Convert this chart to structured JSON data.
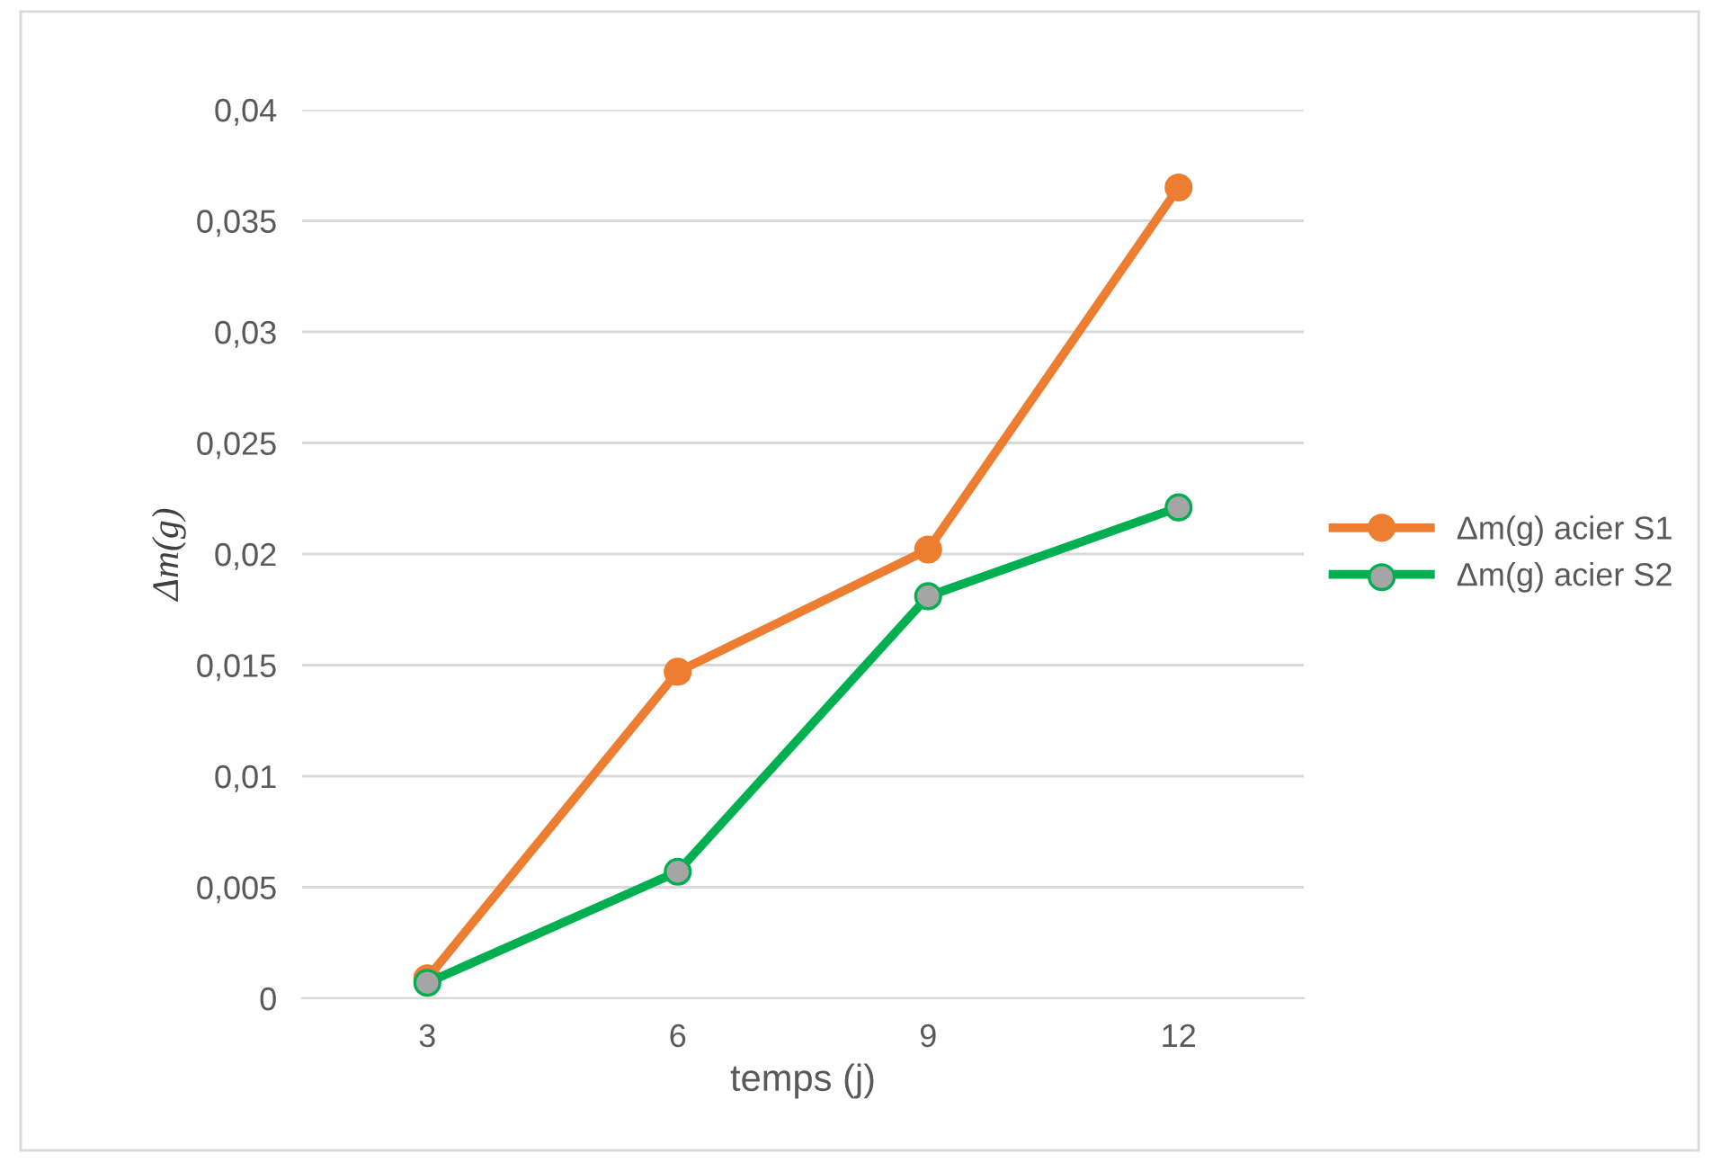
{
  "chart_data": {
    "type": "line",
    "xlabel": "temps (j)",
    "ylabel": "Δm(g)",
    "categories": [
      "3",
      "6",
      "9",
      "12"
    ],
    "series": [
      {
        "name": "Δm(g) acier S1",
        "color": "#ed7d31",
        "values": [
          0.0009,
          0.0147,
          0.0202,
          0.0365
        ]
      },
      {
        "name": "Δm(g) acier S2",
        "color": "#00b050",
        "colors": [
          "#a5a5a5",
          "#a5a5a5",
          "#a5a5a5",
          "#a5a5a5"
        ],
        "values": [
          0.0007,
          0.0057,
          0.0181,
          0.0221
        ]
      }
    ],
    "ylim": [
      0,
      0.04
    ],
    "yticks": [
      {
        "value": 0,
        "label": "0"
      },
      {
        "value": 0.005,
        "label": "0,005"
      },
      {
        "value": 0.01,
        "label": "0,01"
      },
      {
        "value": 0.015,
        "label": "0,015"
      },
      {
        "value": 0.02,
        "label": "0,02"
      },
      {
        "value": 0.025,
        "label": "0,025"
      },
      {
        "value": 0.03,
        "label": "0,03"
      },
      {
        "value": 0.035,
        "label": "0,035"
      },
      {
        "value": 0.04,
        "label": "0,04"
      }
    ],
    "grid": "y",
    "legend": "right",
    "marker": "circle",
    "line_style": "solid"
  }
}
